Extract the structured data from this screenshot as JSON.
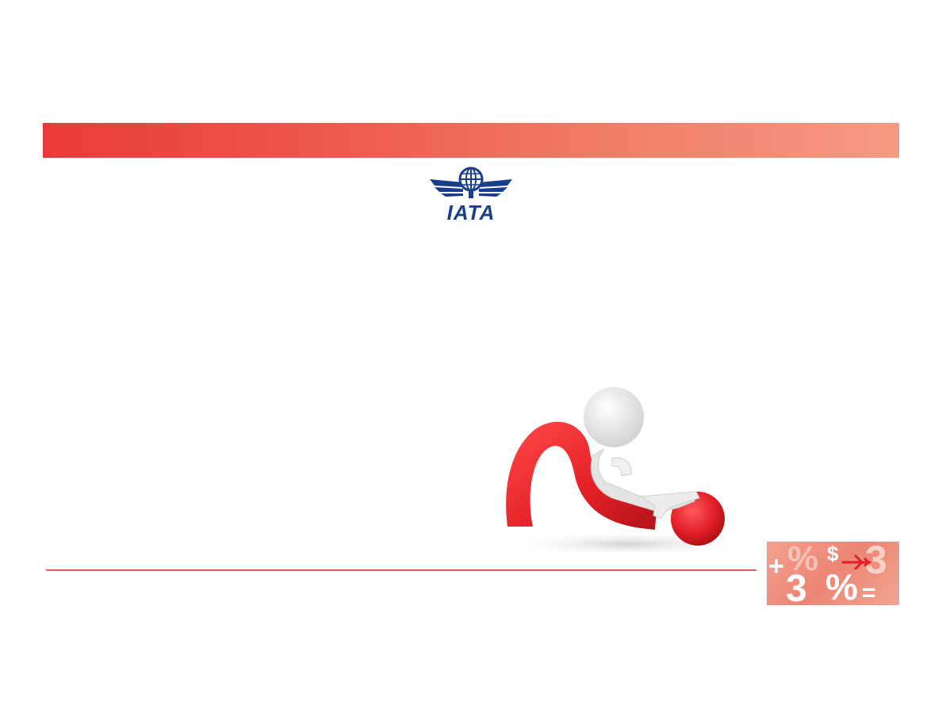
{
  "logo": {
    "text": "IATA",
    "icon": "globe-wings-icon",
    "color": "#1a3f8a"
  },
  "header_bar": {
    "gradient_start": "#e93a3a",
    "gradient_end": "#f59a82"
  },
  "illustration": {
    "icon": "question-mark-person-icon",
    "accent": "#e21f26"
  },
  "tile": {
    "glyphs": [
      "+",
      "%",
      "$",
      "3",
      "3",
      "%",
      "="
    ],
    "icon": "airplane-icon"
  },
  "divider": {
    "color": "#ee5a5a"
  }
}
